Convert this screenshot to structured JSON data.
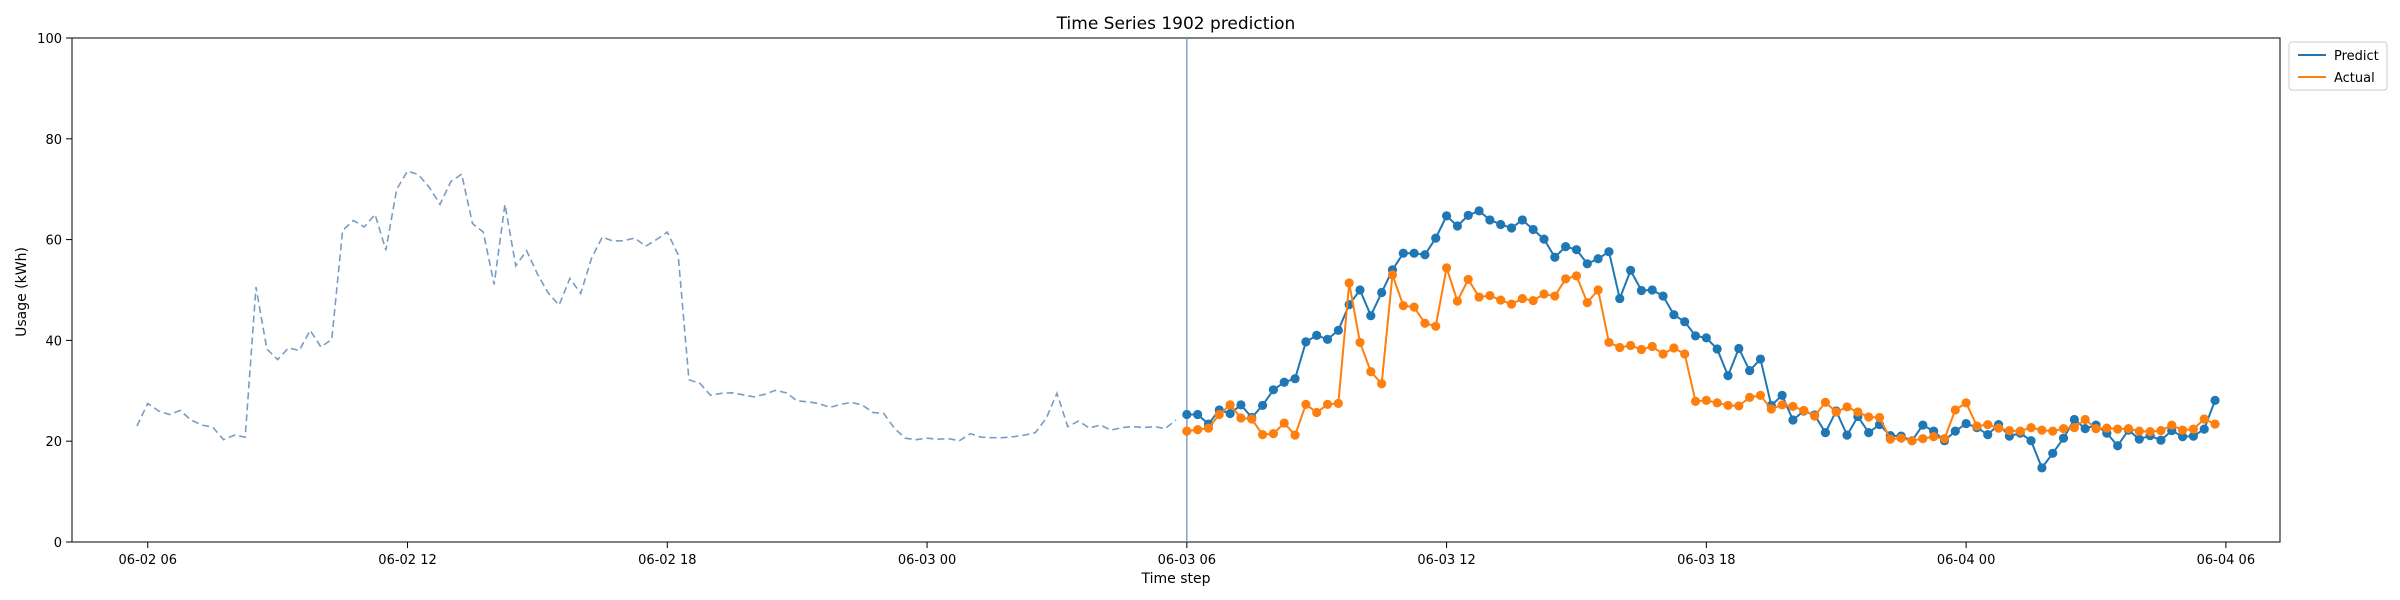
{
  "chart_data": {
    "type": "line",
    "title": "Time Series 1902 prediction",
    "xlabel": "Time step",
    "ylabel": "Usage (kWh)",
    "xlim": [
      "06-02 04:15",
      "06-04 07:15"
    ],
    "ylim": [
      0,
      100
    ],
    "x_ticks": [
      "06-02 06",
      "06-02 12",
      "06-02 18",
      "06-03 00",
      "06-03 06",
      "06-03 12",
      "06-03 18",
      "06-04 00",
      "06-04 06"
    ],
    "y_ticks": [
      0,
      20,
      40,
      60,
      80,
      100
    ],
    "split_time": "06-03 06:00",
    "legend": {
      "placement": "upper-right-outside"
    },
    "history": {
      "start": "06-02 05:45",
      "interval_minutes": 15,
      "color": "#7a9bc4",
      "style": "dashed",
      "values": [
        23.0,
        27.5,
        26.0,
        25.3,
        26.1,
        24.2,
        23.2,
        22.8,
        20.3,
        21.2,
        20.8,
        50.6,
        38.3,
        36.2,
        38.5,
        38.0,
        42.0,
        38.7,
        40.2,
        61.8,
        63.8,
        62.5,
        65.0,
        57.9,
        70.0,
        73.6,
        72.9,
        70.4,
        67.0,
        71.5,
        73.0,
        63.2,
        61.5,
        51.1,
        67.0,
        54.8,
        57.8,
        53.2,
        49.4,
        47.0,
        52.3,
        49.3,
        56.3,
        60.5,
        59.7,
        59.8,
        60.3,
        58.7,
        60.0,
        61.5,
        57.0,
        32.2,
        31.5,
        29.1,
        29.5,
        29.6,
        29.2,
        28.8,
        29.3,
        30.1,
        29.6,
        28.0,
        27.8,
        27.5,
        26.7,
        27.3,
        27.7,
        27.2,
        25.7,
        25.5,
        22.5,
        20.6,
        20.3,
        20.6,
        20.4,
        20.5,
        20.1,
        21.5,
        20.8,
        20.7,
        20.7,
        20.9,
        21.2,
        21.7,
        24.5,
        29.5,
        22.9,
        24.0,
        22.6,
        23.2,
        22.2,
        22.7,
        22.9,
        22.7,
        22.9,
        22.5,
        24.2
      ]
    },
    "forecast_start": "06-03 06:00",
    "forecast_interval_minutes": 15,
    "series": [
      {
        "name": "Predict",
        "color": "#1f77b4",
        "values": [
          25.3,
          25.3,
          23.4,
          26.2,
          25.5,
          27.2,
          24.7,
          27.1,
          30.2,
          31.7,
          32.4,
          39.7,
          41.0,
          40.2,
          42.0,
          47.1,
          50.0,
          44.9,
          49.5,
          54.0,
          57.3,
          57.3,
          57.0,
          60.3,
          64.7,
          62.7,
          64.8,
          65.7,
          63.9,
          63.0,
          62.3,
          63.9,
          62.0,
          60.1,
          56.5,
          58.6,
          58.0,
          55.2,
          56.2,
          57.6,
          48.3,
          53.9,
          49.9,
          50.0,
          48.8,
          45.1,
          43.7,
          40.9,
          40.5,
          38.3,
          33.0,
          38.4,
          34.0,
          36.3,
          27.1,
          29.1,
          24.2,
          26.0,
          25.2,
          21.7,
          26.0,
          21.2,
          24.9,
          21.7,
          23.3,
          21.1,
          21.0,
          20.1,
          23.2,
          22.0,
          20.1,
          22.0,
          23.5,
          22.7,
          21.3,
          23.3,
          21.0,
          21.6,
          20.1,
          14.7,
          17.6,
          20.6,
          24.3,
          22.5,
          23.2,
          21.6,
          19.1,
          22.2,
          20.4,
          21.1,
          20.2,
          22.1,
          20.9,
          21.0,
          22.4,
          28.1
        ]
      },
      {
        "name": "Actual",
        "color": "#ff7f0e",
        "values": [
          22.0,
          22.3,
          22.6,
          25.3,
          27.2,
          24.6,
          24.4,
          21.3,
          21.5,
          23.6,
          21.2,
          27.3,
          25.7,
          27.3,
          27.5,
          51.4,
          39.6,
          33.8,
          31.4,
          53.0,
          46.9,
          46.6,
          43.4,
          42.8,
          54.4,
          47.8,
          52.1,
          48.6,
          48.9,
          48.0,
          47.2,
          48.3,
          47.9,
          49.2,
          48.8,
          52.2,
          52.8,
          47.5,
          50.0,
          39.6,
          38.6,
          39.0,
          38.2,
          38.8,
          37.3,
          38.5,
          37.3,
          27.9,
          28.1,
          27.6,
          27.1,
          27.0,
          28.7,
          29.1,
          26.4,
          27.2,
          26.9,
          26.1,
          25.0,
          27.7,
          25.8,
          26.8,
          25.8,
          24.8,
          24.7,
          20.4,
          20.6,
          20.1,
          20.5,
          20.9,
          20.5,
          26.2,
          27.6,
          23.0,
          23.3,
          22.6,
          22.1,
          22.0,
          22.7,
          22.2,
          22.0,
          22.5,
          22.7,
          24.3,
          22.5,
          22.6,
          22.4,
          22.5,
          22.0,
          21.9,
          22.1,
          23.2,
          22.2,
          22.4,
          24.4,
          23.4
        ]
      }
    ]
  }
}
